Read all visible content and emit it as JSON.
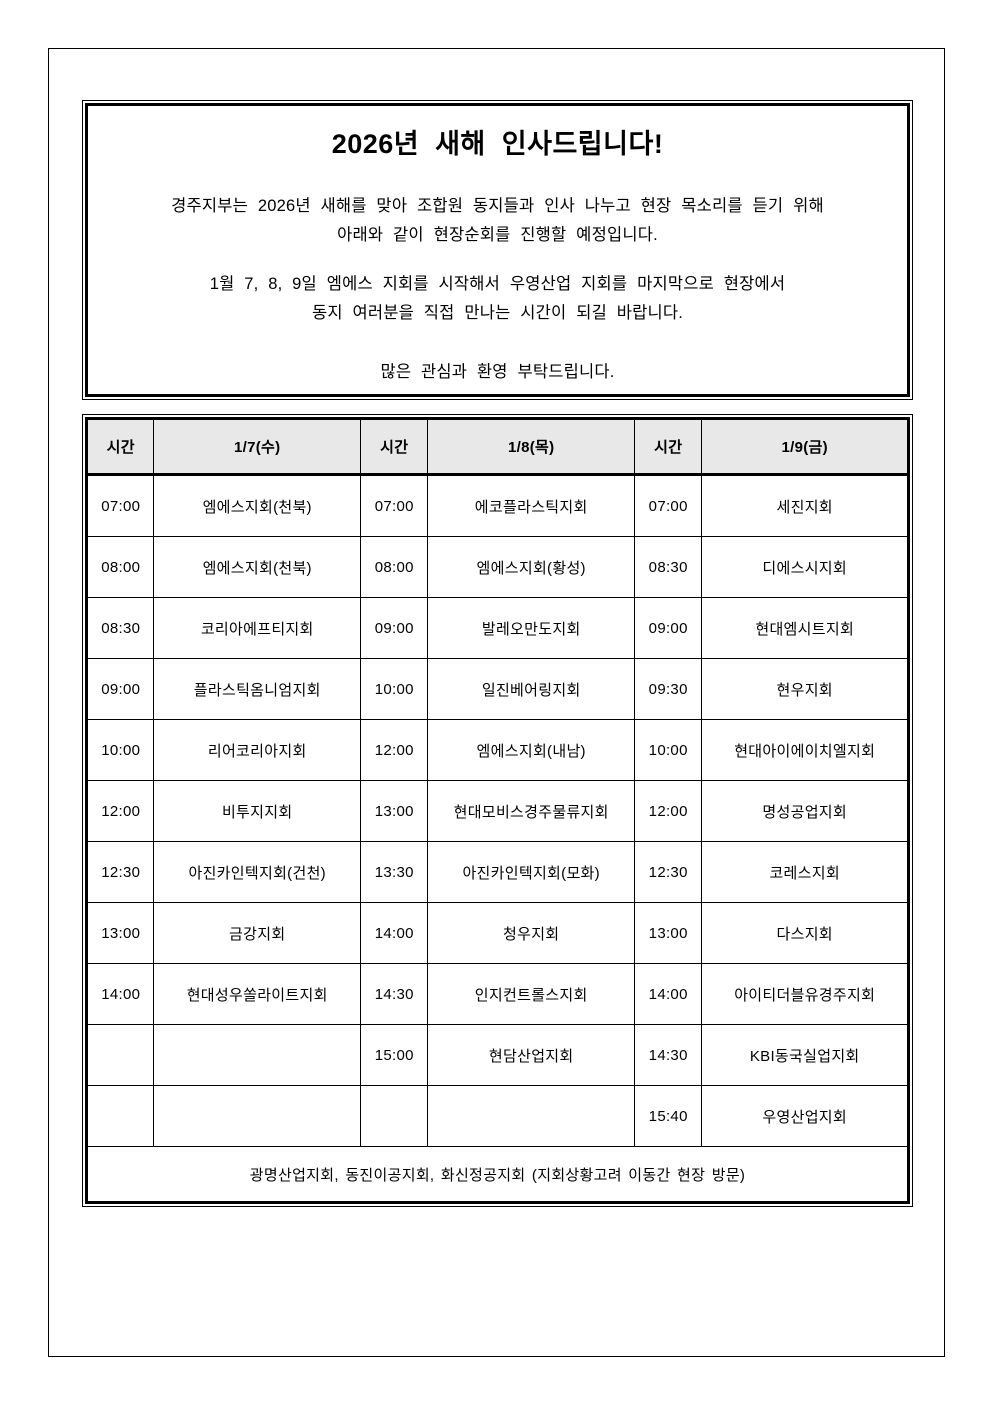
{
  "notice": {
    "title": "2026년 새해 인사드립니다!",
    "paragraphs": [
      {
        "lines": [
          "경주지부는 2026년 새해를 맞아 조합원 동지들과 인사 나누고 현장 목소리를 듣기 위해",
          "아래와 같이 현장순회를 진행할 예정입니다."
        ]
      },
      {
        "lines": [
          "1월 7, 8, 9일 엠에스 지회를 시작해서 우영산업 지회를 마지막으로 현장에서",
          "동지 여러분을 직접 만나는 시간이 되길 바랍니다."
        ]
      },
      {
        "lines": [
          "많은 관심과 환영 부탁드립니다."
        ]
      }
    ]
  },
  "schedule": {
    "columns": [
      "시간",
      "1/7(수)",
      "시간",
      "1/8(목)",
      "시간",
      "1/9(금)"
    ],
    "rows": [
      [
        "07:00",
        "엠에스지회(천북)",
        "07:00",
        "에코플라스틱지회",
        "07:00",
        "세진지회"
      ],
      [
        "08:00",
        "엠에스지회(천북)",
        "08:00",
        "엠에스지회(황성)",
        "08:30",
        "디에스시지회"
      ],
      [
        "08:30",
        "코리아에프티지회",
        "09:00",
        "발레오만도지회",
        "09:00",
        "현대엠시트지회"
      ],
      [
        "09:00",
        "플라스틱옴니엄지회",
        "10:00",
        "일진베어링지회",
        "09:30",
        "현우지회"
      ],
      [
        "10:00",
        "리어코리아지회",
        "12:00",
        "엠에스지회(내남)",
        "10:00",
        "현대아이에이치엘지회"
      ],
      [
        "12:00",
        "비투지지회",
        "13:00",
        "현대모비스경주물류지회",
        "12:00",
        "명성공업지회"
      ],
      [
        "12:30",
        "아진카인텍지회(건천)",
        "13:30",
        "아진카인텍지회(모화)",
        "12:30",
        "코레스지회"
      ],
      [
        "13:00",
        "금강지회",
        "14:00",
        "청우지회",
        "13:00",
        "다스지회"
      ],
      [
        "14:00",
        "현대성우쏠라이트지회",
        "14:30",
        "인지컨트롤스지회",
        "14:00",
        "아이티더블유경주지회"
      ],
      [
        "",
        "",
        "15:00",
        "현담산업지회",
        "14:30",
        "KBI동국실업지회"
      ],
      [
        "",
        "",
        "",
        "",
        "15:40",
        "우영산업지회"
      ]
    ],
    "footer": "광명산업지회, 동진이공지회, 화신정공지회 (지회상황고려 이동간 현장 방문)"
  },
  "colors": {
    "table_header_bg": "#e8e8e8",
    "border": "#000000",
    "text": "#000000"
  }
}
